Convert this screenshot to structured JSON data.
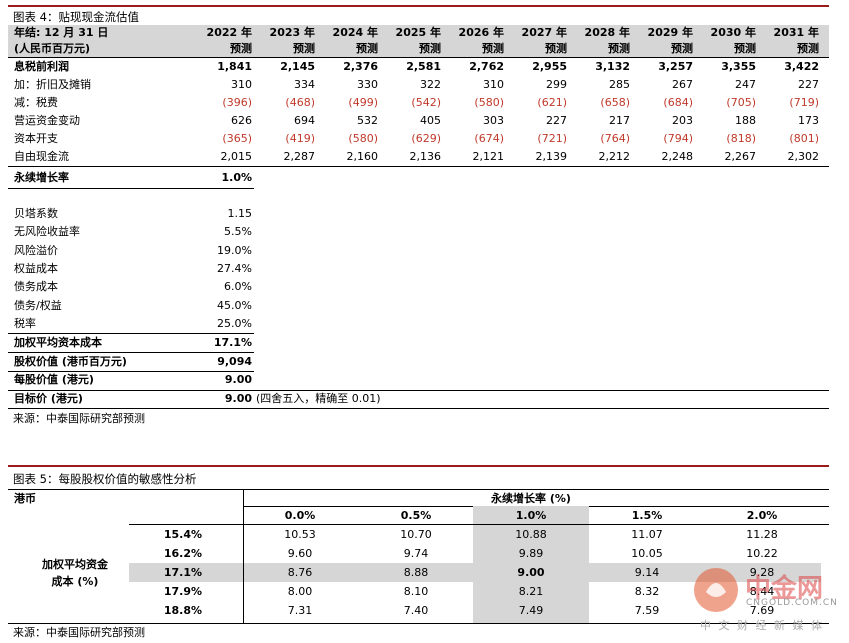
{
  "table4": {
    "title": "图表 4：贴现现金流估值",
    "header_label_1": "年结: 12 月 31 日",
    "header_label_2": "(人民币百万元)",
    "years": [
      "2022 年",
      "2023 年",
      "2024 年",
      "2025 年",
      "2026 年",
      "2027 年",
      "2028 年",
      "2029 年",
      "2030 年",
      "2031 年"
    ],
    "forecast": "预测",
    "rows": [
      {
        "label": "息税前利润",
        "bold": true,
        "values": [
          "1,841",
          "2,145",
          "2,376",
          "2,581",
          "2,762",
          "2,955",
          "3,132",
          "3,257",
          "3,355",
          "3,422"
        ]
      },
      {
        "label": "加：折旧及摊销",
        "bold": false,
        "values": [
          "310",
          "334",
          "330",
          "322",
          "310",
          "299",
          "285",
          "267",
          "247",
          "227"
        ]
      },
      {
        "label": "减：税费",
        "bold": false,
        "neg": true,
        "values": [
          "(396)",
          "(468)",
          "(499)",
          "(542)",
          "(580)",
          "(621)",
          "(658)",
          "(684)",
          "(705)",
          "(719)"
        ]
      },
      {
        "label": "营运资金变动",
        "bold": false,
        "values": [
          "626",
          "694",
          "532",
          "405",
          "303",
          "227",
          "217",
          "203",
          "188",
          "173"
        ]
      },
      {
        "label": "资本开支",
        "bold": false,
        "neg": true,
        "values": [
          "(365)",
          "(419)",
          "(580)",
          "(629)",
          "(674)",
          "(721)",
          "(764)",
          "(794)",
          "(818)",
          "(801)"
        ]
      },
      {
        "label": "自由现金流",
        "bold": false,
        "values": [
          "2,015",
          "2,287",
          "2,160",
          "2,136",
          "2,121",
          "2,139",
          "2,212",
          "2,248",
          "2,267",
          "2,302"
        ]
      }
    ],
    "perp_label": "永续增长率",
    "perp_value": "1.0%",
    "params": [
      {
        "label": "贝塔系数",
        "value": "1.15"
      },
      {
        "label": "无风险收益率",
        "value": "5.5%"
      },
      {
        "label": "风险溢价",
        "value": "19.0%"
      },
      {
        "label": "权益成本",
        "value": "27.4%"
      },
      {
        "label": "债务成本",
        "value": "6.0%"
      },
      {
        "label": "债务/权益",
        "value": "45.0%"
      },
      {
        "label": "税率",
        "value": "25.0%"
      }
    ],
    "wacc_label": "加权平均资本成本",
    "wacc_value": "17.1%",
    "equity_label": "股权价值 (港币百万元)",
    "equity_value": "9,094",
    "pershare_label": "每股价值 (港元)",
    "pershare_value": "9.00",
    "target_label": "目标价 (港元)",
    "target_value": "9.00",
    "target_note": "(四舍五入，精确至 0.01)",
    "source": "来源：中泰国际研究部预测"
  },
  "table5": {
    "title": "图表 5：每股股权价值的敏感性分析",
    "currency": "港币",
    "col_header": "永续增长率 (%)",
    "cols": [
      "0.0%",
      "0.5%",
      "1.0%",
      "1.5%",
      "2.0%"
    ],
    "row_header_1": "加权平均资金",
    "row_header_2": "成本 (%)",
    "rows": [
      {
        "label": "15.4%",
        "values": [
          "10.53",
          "10.70",
          "10.88",
          "11.07",
          "11.28"
        ]
      },
      {
        "label": "16.2%",
        "values": [
          "9.60",
          "9.74",
          "9.89",
          "10.05",
          "10.22"
        ]
      },
      {
        "label": "17.1%",
        "values": [
          "8.76",
          "8.88",
          "9.00",
          "9.14",
          "9.28"
        ]
      },
      {
        "label": "17.9%",
        "values": [
          "8.00",
          "8.10",
          "8.21",
          "8.32",
          "8.44"
        ]
      },
      {
        "label": "18.8%",
        "values": [
          "7.31",
          "7.40",
          "7.49",
          "7.59",
          "7.69"
        ]
      }
    ],
    "source": "来源：中泰国际研究部预测"
  },
  "watermark": {
    "name": "中金网",
    "url": "CNGOLD.COM.CN",
    "tagline": "中 文 财 经 新 媒 体"
  }
}
